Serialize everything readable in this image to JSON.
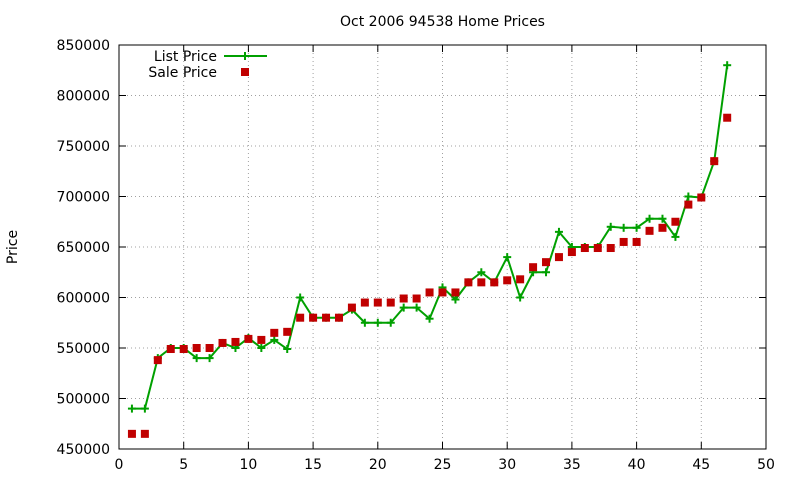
{
  "chart_data": {
    "type": "line",
    "title": "Oct 2006 94538 Home Prices",
    "xlabel": "",
    "ylabel": "Price",
    "xlim": [
      0,
      50
    ],
    "ylim": [
      450000,
      850000
    ],
    "xticks": [
      0,
      5,
      10,
      15,
      20,
      25,
      30,
      35,
      40,
      45,
      50
    ],
    "yticks": [
      450000,
      500000,
      550000,
      600000,
      650000,
      700000,
      750000,
      800000,
      850000
    ],
    "grid": true,
    "legend_position": "top-left",
    "series": [
      {
        "name": "List Price",
        "style": "line-with-plus-markers",
        "color": "#00a000",
        "x": [
          1,
          2,
          3,
          4,
          5,
          6,
          7,
          8,
          9,
          10,
          11,
          12,
          13,
          14,
          15,
          16,
          17,
          18,
          19,
          20,
          21,
          22,
          23,
          24,
          25,
          26,
          27,
          28,
          29,
          30,
          31,
          32,
          33,
          34,
          35,
          36,
          37,
          38,
          39,
          40,
          41,
          42,
          43,
          44,
          45,
          46,
          47
        ],
        "y": [
          490000,
          490000,
          540000,
          550000,
          550000,
          540000,
          540000,
          555000,
          550000,
          560000,
          550000,
          558000,
          549000,
          600000,
          580000,
          580000,
          580000,
          588000,
          575000,
          575000,
          575000,
          590000,
          590000,
          579000,
          610000,
          598000,
          615000,
          625000,
          615000,
          640000,
          600000,
          625000,
          625000,
          665000,
          650000,
          650000,
          650000,
          670000,
          669000,
          669000,
          678000,
          678000,
          660000,
          700000,
          699000,
          735000,
          830000
        ]
      },
      {
        "name": "Sale Price",
        "style": "square-markers",
        "color": "#c00000",
        "x": [
          1,
          2,
          3,
          4,
          5,
          6,
          7,
          8,
          9,
          10,
          11,
          12,
          13,
          14,
          15,
          16,
          17,
          18,
          19,
          20,
          21,
          22,
          23,
          24,
          25,
          26,
          27,
          28,
          29,
          30,
          31,
          32,
          33,
          34,
          35,
          36,
          37,
          38,
          39,
          40,
          41,
          42,
          43,
          44,
          45,
          46,
          47
        ],
        "y": [
          465000,
          465000,
          538000,
          549000,
          549000,
          550000,
          550000,
          555000,
          556000,
          559000,
          558000,
          565000,
          566000,
          580000,
          580000,
          580000,
          580000,
          590000,
          595000,
          595000,
          595000,
          599000,
          599000,
          605000,
          605000,
          605000,
          615000,
          615000,
          615000,
          617000,
          618000,
          630000,
          635000,
          640000,
          645000,
          649000,
          649000,
          649000,
          655000,
          655000,
          666000,
          669000,
          675000,
          692000,
          699000,
          735000,
          778000
        ]
      }
    ]
  }
}
